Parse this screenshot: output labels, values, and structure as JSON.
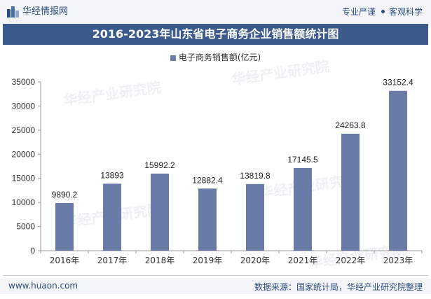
{
  "header": {
    "brand": "华经情报网",
    "tagline_left": "专业严谨",
    "tagline_right": "客观科学"
  },
  "footer": {
    "website": "www.huaon.com",
    "source": "数据来源：国家统计局，华经产业研究院整理"
  },
  "watermark": "华经产业研究院",
  "colors": {
    "bar": "#6b7ba8",
    "title_bg": "#3c5a8c",
    "accent": "#2b4c7e"
  },
  "chart_data": {
    "type": "bar",
    "title": "2016-2023年山东省电子商务企业销售额统计图",
    "legend": "电子商务销售额(亿元)",
    "categories": [
      "2016年",
      "2017年",
      "2018年",
      "2019年",
      "2020年",
      "2021年",
      "2022年",
      "2023年"
    ],
    "values": [
      9890.2,
      13893,
      15992.2,
      12882.4,
      13819.8,
      17145.5,
      24263.8,
      33152.4
    ],
    "value_labels": [
      "9890.2",
      "13893",
      "15992.2",
      "12882.4",
      "13819.8",
      "17145.5",
      "24263.8",
      "33152.4"
    ],
    "ylim": [
      0,
      35000
    ],
    "yticks": [
      0,
      5000,
      10000,
      15000,
      20000,
      25000,
      30000,
      35000
    ],
    "xlabel": "",
    "ylabel": ""
  }
}
